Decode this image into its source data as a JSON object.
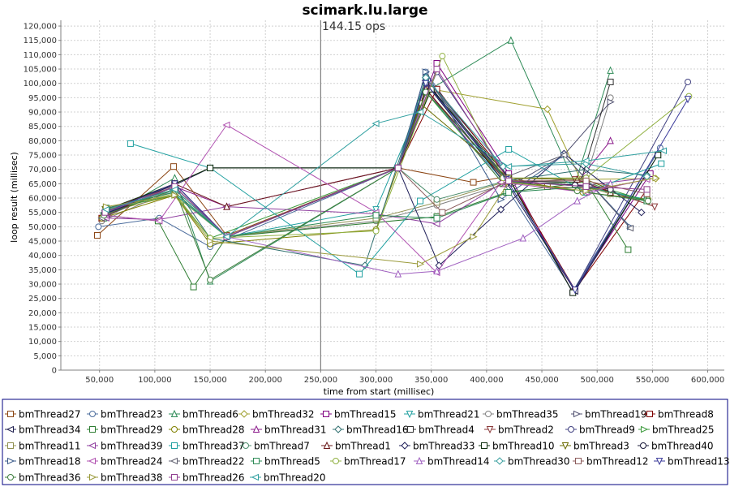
{
  "chart_data": {
    "type": "line",
    "title": "scimark.lu.large",
    "xlabel": "time from start (millisec)",
    "ylabel": "loop result (millisec)",
    "xlim": [
      15000,
      615000
    ],
    "ylim": [
      0,
      122000
    ],
    "x_ticks": [
      50000,
      100000,
      150000,
      200000,
      250000,
      300000,
      350000,
      400000,
      450000,
      500000,
      550000,
      600000
    ],
    "x_tick_labels": [
      "50,000",
      "100,000",
      "150,000",
      "200,000",
      "250,000",
      "300,000",
      "350,000",
      "400,000",
      "450,000",
      "500,000",
      "550,000",
      "600,000"
    ],
    "y_ticks": [
      0,
      5000,
      10000,
      15000,
      20000,
      25000,
      30000,
      35000,
      40000,
      45000,
      50000,
      55000,
      60000,
      65000,
      70000,
      75000,
      80000,
      85000,
      90000,
      95000,
      100000,
      105000,
      110000,
      115000,
      120000
    ],
    "y_tick_labels": [
      "0",
      "5,000",
      "10,000",
      "15,000",
      "20,000",
      "25,000",
      "30,000",
      "35,000",
      "40,000",
      "45,000",
      "50,000",
      "55,000",
      "60,000",
      "65,000",
      "70,000",
      "75,000",
      "80,000",
      "85,000",
      "90,000",
      "95,000",
      "100,000",
      "105,000",
      "110,000",
      "115,000",
      "120,000"
    ],
    "grid": true,
    "legend_position": "bottom",
    "marker_line": {
      "x": 250000,
      "label": "144.15 ops"
    },
    "series": [
      {
        "name": "bmThread27",
        "color": "#8b4513",
        "marker": "square",
        "x": [
          48000,
          117000,
          165000,
          320000,
          388000,
          418000,
          455000,
          510000
        ],
        "y": [
          47000,
          71000,
          47000,
          70500,
          65500,
          67500,
          64000,
          63000
        ]
      },
      {
        "name": "bmThread23",
        "color": "#4b6c9c",
        "marker": "circle",
        "x": [
          49000,
          104000,
          150000,
          320000,
          345000,
          415000,
          478000,
          557000
        ],
        "y": [
          50000,
          53000,
          43000,
          70500,
          104000,
          65500,
          27500,
          77500
        ]
      },
      {
        "name": "bmThread6",
        "color": "#2e8b57",
        "marker": "triangle-up",
        "x": [
          54000,
          118000,
          150000,
          320000,
          345000,
          422000,
          480000,
          512000
        ],
        "y": [
          53000,
          67000,
          31000,
          70500,
          97000,
          115000,
          65000,
          104500
        ]
      },
      {
        "name": "bmThread32",
        "color": "#a0a030",
        "marker": "diamond",
        "x": [
          55000,
          118000,
          165000,
          320000,
          350000,
          455000,
          485000,
          553000
        ],
        "y": [
          55000,
          61000,
          46500,
          70500,
          98000,
          91000,
          66500,
          66800
        ]
      },
      {
        "name": "bmThread15",
        "color": "#800080",
        "marker": "square",
        "x": [
          57000,
          118000,
          165000,
          320000,
          355000,
          420000,
          478000,
          548000
        ],
        "y": [
          54500,
          64000,
          46500,
          70500,
          107000,
          68500,
          27000,
          68500
        ]
      },
      {
        "name": "bmThread21",
        "color": "#20a0a0",
        "marker": "triangle-down",
        "x": [
          55000,
          116000,
          165000,
          300000,
          345000,
          415000,
          490000,
          545000
        ],
        "y": [
          56000,
          62000,
          46500,
          56000,
          97000,
          66000,
          64000,
          59500
        ]
      },
      {
        "name": "bmThread35",
        "color": "#808080",
        "marker": "circle",
        "x": [
          52000,
          118000,
          165000,
          300000,
          355000,
          418000,
          490000,
          512000
        ],
        "y": [
          52000,
          63000,
          46500,
          52000,
          57500,
          65000,
          67000,
          95000
        ]
      },
      {
        "name": "bmThread19",
        "color": "#505070",
        "marker": "triangle-right",
        "x": [
          54000,
          118000,
          165000,
          320000,
          345000,
          425000,
          470000,
          512000
        ],
        "y": [
          54000,
          64000,
          46500,
          70500,
          102000,
          65000,
          75000,
          93500
        ]
      },
      {
        "name": "bmThread8",
        "color": "#800000",
        "marker": "square",
        "x": [
          52000,
          118000,
          165000,
          320000,
          355000,
          420000,
          480000,
          545000
        ],
        "y": [
          53000,
          65000,
          46500,
          70500,
          98000,
          67000,
          28000,
          63000
        ]
      },
      {
        "name": "bmThread34",
        "color": "#202050",
        "marker": "triangle-left",
        "x": [
          55000,
          118000,
          150000,
          320000,
          345000,
          418000,
          480000,
          555000
        ],
        "y": [
          55500,
          64500,
          70500,
          70500,
          101000,
          65500,
          27500,
          75000
        ]
      },
      {
        "name": "bmThread29",
        "color": "#2e7d32",
        "marker": "square",
        "x": [
          54000,
          103000,
          135000,
          165000,
          355000,
          418000,
          490000,
          528000
        ],
        "y": [
          54000,
          52000,
          29000,
          46500,
          53500,
          62000,
          65500,
          42000
        ]
      },
      {
        "name": "bmThread28",
        "color": "#808000",
        "marker": "circle",
        "x": [
          52000,
          118000,
          150000,
          300000,
          345000,
          415000,
          487000,
          546000
        ],
        "y": [
          53000,
          61000,
          44000,
          49000,
          98000,
          67000,
          62000,
          59500
        ]
      },
      {
        "name": "bmThread31",
        "color": "#8b1a8b",
        "marker": "triangle-up",
        "x": [
          55000,
          118000,
          165000,
          320000,
          345000,
          415000,
          482000,
          512000
        ],
        "y": [
          55000,
          64000,
          57000,
          70500,
          98000,
          65000,
          65500,
          80000
        ]
      },
      {
        "name": "bmThread16",
        "color": "#2f6f6f",
        "marker": "diamond",
        "x": [
          54000,
          118000,
          150000,
          290000,
          345000,
          418000,
          490000,
          545000
        ],
        "y": [
          54500,
          64000,
          46000,
          36500,
          102000,
          66000,
          70000,
          68000
        ]
      },
      {
        "name": "bmThread4",
        "color": "#303030",
        "marker": "square",
        "x": [
          55000,
          118000,
          150000,
          320000,
          350000,
          420000,
          485000,
          512000
        ],
        "y": [
          55000,
          65000,
          70500,
          70500,
          98000,
          66000,
          65500,
          100500
        ]
      },
      {
        "name": "bmThread2",
        "color": "#8b3a3a",
        "marker": "triangle-down",
        "x": [
          57000,
          118000,
          165000,
          320000,
          345000,
          415000,
          480000,
          552000
        ],
        "y": [
          56000,
          63000,
          46500,
          70500,
          98000,
          67000,
          66500,
          57000
        ]
      },
      {
        "name": "bmThread9",
        "color": "#404080",
        "marker": "circle",
        "x": [
          55000,
          118000,
          165000,
          320000,
          355000,
          420000,
          478000,
          582000
        ],
        "y": [
          55000,
          64000,
          46500,
          70500,
          104000,
          67000,
          27000,
          100500
        ]
      },
      {
        "name": "bmThread25",
        "color": "#3c9a3c",
        "marker": "triangle-right",
        "x": [
          56000,
          118000,
          150000,
          320000,
          345000,
          415000,
          490000,
          545000
        ],
        "y": [
          56000,
          61000,
          46000,
          70500,
          97000,
          65000,
          65500,
          59000
        ]
      },
      {
        "name": "bmThread11",
        "color": "#909050",
        "marker": "square",
        "x": [
          56000,
          118000,
          165000,
          300000,
          355000,
          420000,
          490000,
          512000
        ],
        "y": [
          56500,
          62000,
          46500,
          53000,
          58500,
          66000,
          64000,
          61500
        ]
      },
      {
        "name": "bmThread39",
        "color": "#9040a0",
        "marker": "triangle-left",
        "x": [
          56000,
          104000,
          165000,
          300000,
          355000,
          415000,
          490000,
          545000
        ],
        "y": [
          53000,
          52500,
          57000,
          54500,
          51000,
          65500,
          64500,
          67000
        ]
      },
      {
        "name": "bmThread37",
        "color": "#20a0a0",
        "marker": "square",
        "x": [
          78000,
          150000,
          285000,
          340000,
          420000,
          490000,
          558000
        ],
        "y": [
          79000,
          70500,
          33500,
          59000,
          77000,
          62000,
          72000
        ]
      },
      {
        "name": "bmThread7",
        "color": "#4f8f6f",
        "marker": "circle",
        "x": [
          55000,
          118000,
          165000,
          320000,
          355000,
          418000,
          490000,
          545000
        ],
        "y": [
          55000,
          64000,
          46500,
          70500,
          59500,
          66000,
          62000,
          59000
        ]
      },
      {
        "name": "bmThread1",
        "color": "#6b1a1a",
        "marker": "triangle-up",
        "x": [
          55000,
          118000,
          165000,
          320000,
          345000,
          415000,
          482000,
          512000
        ],
        "y": [
          55500,
          65000,
          57000,
          70500,
          98000,
          67000,
          66500,
          62000
        ]
      },
      {
        "name": "bmThread33",
        "color": "#20205a",
        "marker": "diamond",
        "x": [
          55000,
          118000,
          165000,
          320000,
          357000,
          413000,
          470000,
          540000
        ],
        "y": [
          54500,
          64000,
          46500,
          70500,
          36500,
          56000,
          75500,
          55000
        ]
      },
      {
        "name": "bmThread10",
        "color": "#103010",
        "marker": "square",
        "x": [
          56000,
          118000,
          150000,
          320000,
          350000,
          420000,
          478000,
          555000
        ],
        "y": [
          56000,
          65000,
          70500,
          70500,
          98000,
          67000,
          27000,
          75000
        ]
      },
      {
        "name": "bmThread3",
        "color": "#6b6b00",
        "marker": "triangle-down",
        "x": [
          55000,
          118000,
          165000,
          320000,
          340000,
          420000,
          490000,
          512000
        ],
        "y": [
          56000,
          63000,
          46500,
          70500,
          93000,
          67000,
          66500,
          63000
        ]
      },
      {
        "name": "bmThread40",
        "color": "#1a1a3a",
        "marker": "circle",
        "x": [
          55000,
          118000,
          165000,
          320000,
          345000,
          415000,
          480000,
          512000
        ],
        "y": [
          55000,
          65000,
          46500,
          70500,
          100000,
          66000,
          64500,
          63000
        ]
      },
      {
        "name": "bmThread18",
        "color": "#3a5a8a",
        "marker": "triangle-right",
        "x": [
          55000,
          118000,
          165000,
          320000,
          345000,
          413000,
          470000,
          530000
        ],
        "y": [
          55000,
          64000,
          46500,
          70500,
          104000,
          59500,
          75000,
          50000
        ]
      },
      {
        "name": "bmThread24",
        "color": "#b050b0",
        "marker": "triangle-left",
        "x": [
          55000,
          104000,
          165000,
          300000,
          355000,
          413000,
          490000,
          545000
        ],
        "y": [
          54000,
          52000,
          85500,
          55000,
          34000,
          65500,
          62000,
          66500
        ]
      },
      {
        "name": "bmThread22",
        "color": "#606070",
        "marker": "triangle-left",
        "x": [
          52000,
          118000,
          165000,
          320000,
          345000,
          415000,
          470000,
          530000
        ],
        "y": [
          53000,
          64000,
          46500,
          70500,
          102000,
          67000,
          75000,
          49500
        ]
      },
      {
        "name": "bmThread5",
        "color": "#2e8b57",
        "marker": "square",
        "x": [
          56000,
          118000,
          165000,
          300000,
          355000,
          420000,
          490000,
          545000
        ],
        "y": [
          56500,
          62000,
          46500,
          54000,
          53000,
          62000,
          64000,
          59000
        ]
      },
      {
        "name": "bmThread17",
        "color": "#90b040",
        "marker": "circle",
        "x": [
          56000,
          118000,
          150000,
          300000,
          360000,
          415000,
          490000,
          583000
        ],
        "y": [
          56000,
          61500,
          46000,
          48500,
          109500,
          67000,
          67000,
          95500
        ]
      },
      {
        "name": "bmThread14",
        "color": "#a060c0",
        "marker": "triangle-up",
        "x": [
          55000,
          118000,
          165000,
          320000,
          355000,
          433000,
          482000,
          512000
        ],
        "y": [
          55000,
          64000,
          46500,
          33500,
          34500,
          46000,
          59000,
          65000
        ]
      },
      {
        "name": "bmThread30",
        "color": "#3aa0a0",
        "marker": "diamond",
        "x": [
          55000,
          118000,
          165000,
          320000,
          345000,
          415000,
          490000,
          545000
        ],
        "y": [
          55000,
          64000,
          46500,
          70500,
          102000,
          71000,
          72000,
          67500
        ]
      },
      {
        "name": "bmThread12",
        "color": "#8b5a5a",
        "marker": "square",
        "x": [
          56000,
          118000,
          165000,
          320000,
          360000,
          420000,
          490000,
          545000
        ],
        "y": [
          56000,
          64000,
          46500,
          70500,
          55000,
          66000,
          66000,
          61500
        ]
      },
      {
        "name": "bmThread13",
        "color": "#3a3a9a",
        "marker": "triangle-down",
        "x": [
          55000,
          118000,
          165000,
          320000,
          345000,
          418000,
          480000,
          582000
        ],
        "y": [
          55000,
          65000,
          46500,
          70500,
          100000,
          66500,
          28000,
          94500
        ]
      },
      {
        "name": "bmThread36",
        "color": "#3f7f3f",
        "marker": "circle",
        "x": [
          54000,
          118000,
          150000,
          320000,
          345000,
          420000,
          482000,
          546000
        ],
        "y": [
          54000,
          63000,
          31500,
          70500,
          97000,
          66000,
          62500,
          59000
        ]
      },
      {
        "name": "bmThread38",
        "color": "#9a9a3a",
        "marker": "triangle-right",
        "x": [
          56000,
          118000,
          150000,
          340000,
          388000,
          420000,
          490000,
          553000
        ],
        "y": [
          57000,
          61000,
          45000,
          37000,
          46500,
          65500,
          62500,
          67000
        ]
      },
      {
        "name": "bmThread26",
        "color": "#904090",
        "marker": "square",
        "x": [
          55000,
          118000,
          165000,
          320000,
          355000,
          420000,
          490000,
          545000
        ],
        "y": [
          55000,
          64000,
          46500,
          70500,
          105000,
          66000,
          64000,
          63000
        ]
      },
      {
        "name": "bmThread20",
        "color": "#30a0a0",
        "marker": "triangle-left",
        "x": [
          56000,
          118000,
          165000,
          300000,
          340000,
          420000,
          490000,
          560000
        ],
        "y": [
          56000,
          63000,
          46500,
          86000,
          90000,
          71000,
          73000,
          76500
        ]
      }
    ]
  }
}
